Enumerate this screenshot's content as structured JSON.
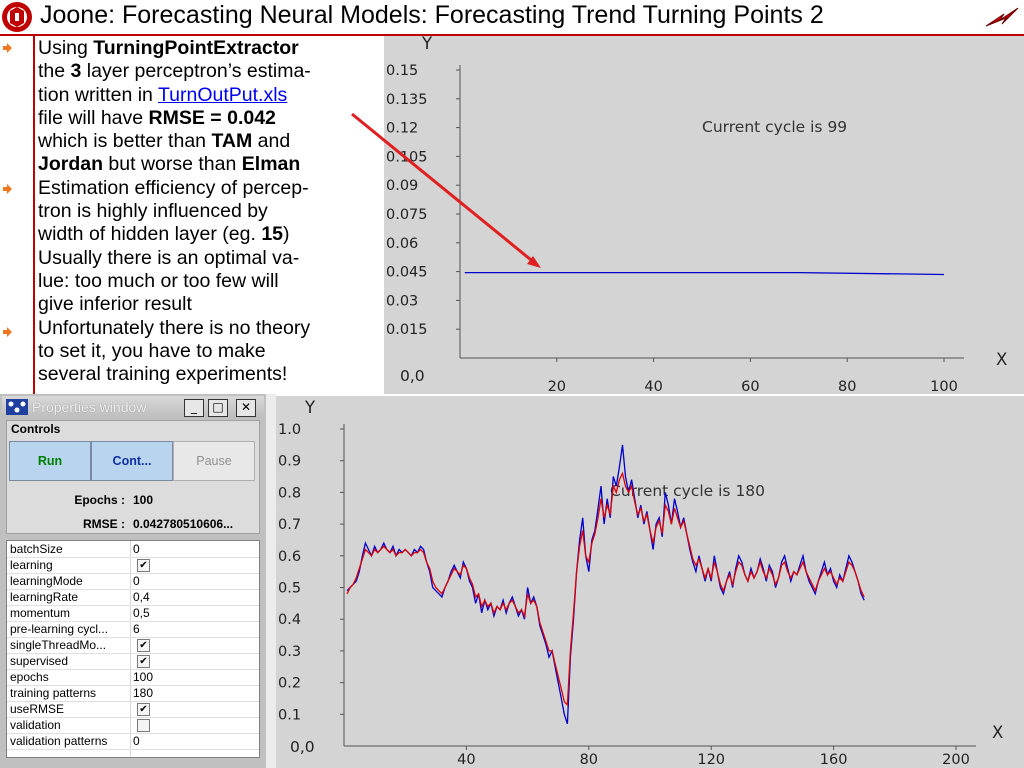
{
  "slide": {
    "title": "Joone: Forecasting Neural Models: Forecasting Trend Turning Points 2"
  },
  "text": {
    "b1_pre": "Using ",
    "b1_bold": "TurningPointExtractor",
    "b1_line2_pre": "the ",
    "b1_bold2": "3",
    "b1_line2_post": " layer perceptron’s estima-",
    "b1_line3_pre": "tion written in ",
    "b1_link": "TurnOutPut.xls",
    "b1_line4_pre": "file will have ",
    "b1_bold3": "RMSE = 0.042",
    "b1_line5_pre": "which is better than ",
    "b1_bold4": "TAM",
    "b1_line5_post": " and",
    "b1_bold5": "Jordan",
    "b1_line6_mid": " but worse than ",
    "b1_bold6": "Elman",
    "b2_line1": "Estimation efficiency of percep-",
    "b2_line2": "tron is highly influenced by",
    "b2_line3_pre": "width of hidden layer (eg. ",
    "b2_bold": "15",
    "b2_line3_post": ")",
    "b2_line4": "Usually there is an optimal va-",
    "b2_line5": "lue: too much or too few will",
    "b2_line6": "give inferior result",
    "b3_line1": "Unfortunately there is no theory",
    "b3_line2": "to set it, you have to make",
    "b3_line3": "several training experiments!"
  },
  "colors": {
    "accent_red": "#c00000",
    "chart_bg": "#d4d4d4",
    "series_blue": "#0000cc",
    "series_red": "#dd0000",
    "annotation_arrow": "#e02020"
  },
  "window": {
    "title": "Properties window",
    "minimize": "_",
    "maximize": "□",
    "close": "✕",
    "controls_label": "Controls",
    "run": "Run",
    "cont": "Cont...",
    "pause": "Pause",
    "epochs_label": "Epochs :",
    "epochs_value": "100",
    "rmse_label": "RMSE :",
    "rmse_value": "0.042780510606..."
  },
  "properties": [
    {
      "name": "batchSize",
      "value": "0"
    },
    {
      "name": "learning",
      "check": true
    },
    {
      "name": "learningMode",
      "value": "0"
    },
    {
      "name": "learningRate",
      "value": "0,4"
    },
    {
      "name": "momentum",
      "value": "0,5"
    },
    {
      "name": "pre-learning cycl...",
      "value": "6"
    },
    {
      "name": "singleThreadMo...",
      "check": true
    },
    {
      "name": "supervised",
      "check": true
    },
    {
      "name": "epochs",
      "value": "100"
    },
    {
      "name": "training patterns",
      "value": "180"
    },
    {
      "name": "useRMSE",
      "check": true
    },
    {
      "name": "validation",
      "check": false
    },
    {
      "name": "validation patterns",
      "value": "0"
    }
  ],
  "chart_data": [
    {
      "type": "line",
      "title": "",
      "xlabel": "X",
      "ylabel": "Y",
      "annotation": "Current cycle is 99",
      "origin_label": "0,0",
      "xlim": [
        0,
        100
      ],
      "ylim": [
        0,
        0.15
      ],
      "x_ticks": [
        "20",
        "40",
        "60",
        "80",
        "100"
      ],
      "y_ticks": [
        "0.015",
        "0.03",
        "0.045",
        "0.06",
        "0.075",
        "0.09",
        "0.105",
        "0.12",
        "0.135",
        "0.15"
      ],
      "grid": false,
      "series": [
        {
          "x": [
            1,
            70,
            100
          ],
          "values": [
            0.0445,
            0.0445,
            0.0435
          ]
        }
      ]
    },
    {
      "type": "line",
      "title": "",
      "xlabel": "X",
      "ylabel": "Y",
      "annotation": "Current cycle is 180",
      "origin_label": "0,0",
      "xlim": [
        0,
        200
      ],
      "ylim": [
        0,
        1.0
      ],
      "x_ticks": [
        "40",
        "80",
        "120",
        "160",
        "200"
      ],
      "y_ticks": [
        "0.1",
        "0.2",
        "0.3",
        "0.4",
        "0.5",
        "0.6",
        "0.7",
        "0.8",
        "0.9",
        "1.0"
      ],
      "grid": false,
      "series": [
        {
          "values": [
            0.49,
            0.5,
            0.51,
            0.52,
            0.55,
            0.6,
            0.64,
            0.62,
            0.6,
            0.63,
            0.61,
            0.62,
            0.64,
            0.62,
            0.61,
            0.63,
            0.6,
            0.62,
            0.61,
            0.62,
            0.61,
            0.6,
            0.62,
            0.61,
            0.63,
            0.62,
            0.58,
            0.55,
            0.5,
            0.49,
            0.48,
            0.47,
            0.5,
            0.52,
            0.55,
            0.57,
            0.55,
            0.53,
            0.58,
            0.56,
            0.52,
            0.5,
            0.45,
            0.48,
            0.42,
            0.46,
            0.43,
            0.45,
            0.41,
            0.44,
            0.43,
            0.46,
            0.42,
            0.45,
            0.47,
            0.44,
            0.41,
            0.43,
            0.4,
            0.5,
            0.45,
            0.47,
            0.44,
            0.38,
            0.35,
            0.32,
            0.28,
            0.3,
            0.25,
            0.2,
            0.15,
            0.1,
            0.07,
            0.28,
            0.4,
            0.55,
            0.65,
            0.72,
            0.6,
            0.55,
            0.65,
            0.68,
            0.75,
            0.82,
            0.7,
            0.78,
            0.72,
            0.85,
            0.82,
            0.88,
            0.95,
            0.85,
            0.8,
            0.84,
            0.78,
            0.72,
            0.76,
            0.7,
            0.74,
            0.68,
            0.62,
            0.7,
            0.72,
            0.66,
            0.8,
            0.76,
            0.7,
            0.78,
            0.74,
            0.69,
            0.72,
            0.67,
            0.62,
            0.58,
            0.55,
            0.6,
            0.56,
            0.52,
            0.56,
            0.52,
            0.6,
            0.55,
            0.5,
            0.48,
            0.52,
            0.55,
            0.5,
            0.56,
            0.6,
            0.58,
            0.54,
            0.52,
            0.56,
            0.53,
            0.55,
            0.59,
            0.56,
            0.52,
            0.57,
            0.55,
            0.5,
            0.53,
            0.58,
            0.6,
            0.56,
            0.52,
            0.55,
            0.54,
            0.57,
            0.6,
            0.55,
            0.52,
            0.5,
            0.48,
            0.52,
            0.55,
            0.58,
            0.54,
            0.56,
            0.52,
            0.5,
            0.54,
            0.52,
            0.56,
            0.6,
            0.58,
            0.55,
            0.52,
            0.48,
            0.46
          ]
        },
        {
          "values": [
            0.48,
            0.5,
            0.51,
            0.53,
            0.56,
            0.59,
            0.62,
            0.61,
            0.6,
            0.62,
            0.61,
            0.62,
            0.63,
            0.62,
            0.61,
            0.62,
            0.6,
            0.61,
            0.61,
            0.62,
            0.61,
            0.6,
            0.61,
            0.61,
            0.62,
            0.61,
            0.58,
            0.56,
            0.52,
            0.5,
            0.49,
            0.48,
            0.5,
            0.52,
            0.54,
            0.56,
            0.55,
            0.54,
            0.57,
            0.56,
            0.53,
            0.51,
            0.47,
            0.48,
            0.44,
            0.46,
            0.44,
            0.45,
            0.42,
            0.44,
            0.43,
            0.45,
            0.43,
            0.45,
            0.46,
            0.44,
            0.42,
            0.43,
            0.41,
            0.48,
            0.45,
            0.46,
            0.44,
            0.39,
            0.36,
            0.33,
            0.3,
            0.3,
            0.26,
            0.22,
            0.18,
            0.14,
            0.13,
            0.3,
            0.42,
            0.55,
            0.63,
            0.68,
            0.6,
            0.58,
            0.64,
            0.67,
            0.72,
            0.78,
            0.72,
            0.76,
            0.73,
            0.82,
            0.8,
            0.84,
            0.86,
            0.82,
            0.8,
            0.82,
            0.77,
            0.73,
            0.75,
            0.71,
            0.73,
            0.68,
            0.64,
            0.69,
            0.71,
            0.67,
            0.76,
            0.74,
            0.7,
            0.75,
            0.72,
            0.69,
            0.71,
            0.67,
            0.63,
            0.59,
            0.57,
            0.59,
            0.56,
            0.53,
            0.56,
            0.53,
            0.58,
            0.55,
            0.51,
            0.49,
            0.52,
            0.54,
            0.51,
            0.55,
            0.58,
            0.57,
            0.54,
            0.52,
            0.55,
            0.53,
            0.55,
            0.58,
            0.55,
            0.53,
            0.56,
            0.54,
            0.51,
            0.53,
            0.57,
            0.58,
            0.55,
            0.53,
            0.55,
            0.54,
            0.56,
            0.58,
            0.55,
            0.53,
            0.51,
            0.49,
            0.52,
            0.54,
            0.56,
            0.54,
            0.55,
            0.53,
            0.51,
            0.53,
            0.52,
            0.55,
            0.58,
            0.57,
            0.55,
            0.52,
            0.49,
            0.47
          ]
        }
      ]
    }
  ]
}
